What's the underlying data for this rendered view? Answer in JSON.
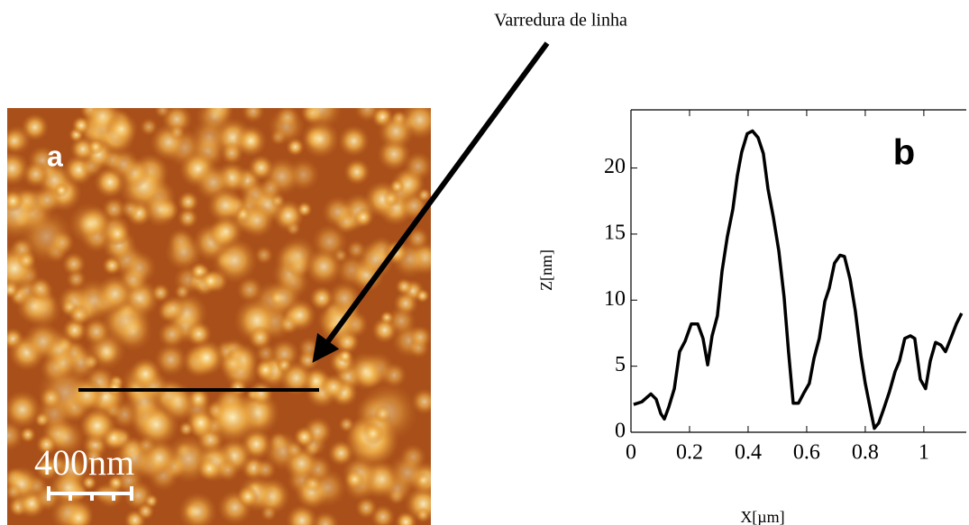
{
  "annotation": "Varredura de linha",
  "image": {
    "label": "a",
    "scale_bar": "400nm"
  },
  "chart_data": {
    "type": "line",
    "panel_label": "b",
    "x_label": "X[µm]",
    "y_label": "Z[nm]",
    "xlim": [
      0,
      1.145
    ],
    "ylim": [
      0,
      24.4
    ],
    "xticks": [
      0,
      0.2,
      0.4,
      0.6,
      0.8,
      1
    ],
    "yticks": [
      0,
      5,
      10,
      15,
      20
    ],
    "x": [
      0.009,
      0.037,
      0.068,
      0.086,
      0.102,
      0.114,
      0.129,
      0.148,
      0.166,
      0.185,
      0.206,
      0.228,
      0.246,
      0.262,
      0.277,
      0.295,
      0.311,
      0.329,
      0.348,
      0.363,
      0.378,
      0.397,
      0.415,
      0.434,
      0.452,
      0.468,
      0.486,
      0.505,
      0.523,
      0.538,
      0.554,
      0.572,
      0.591,
      0.609,
      0.625,
      0.643,
      0.662,
      0.677,
      0.695,
      0.714,
      0.729,
      0.748,
      0.766,
      0.785,
      0.8,
      0.818,
      0.831,
      0.846,
      0.862,
      0.883,
      0.902,
      0.917,
      0.935,
      0.954,
      0.969,
      0.988,
      1.006,
      1.022,
      1.04,
      1.058,
      1.074,
      1.092,
      1.111,
      1.129
    ],
    "series": [
      {
        "color": "#000000",
        "values": [
          2.1,
          2.3,
          2.9,
          2.5,
          1.4,
          1.0,
          1.9,
          3.3,
          6.1,
          6.9,
          8.2,
          8.2,
          7.1,
          5.1,
          7.3,
          8.8,
          12.2,
          14.8,
          16.9,
          19.4,
          21.2,
          22.6,
          22.8,
          22.3,
          21.1,
          18.4,
          16.3,
          13.7,
          10.2,
          6.1,
          2.2,
          2.2,
          3.0,
          3.7,
          5.6,
          7.1,
          9.9,
          10.9,
          12.8,
          13.4,
          13.3,
          11.6,
          9.2,
          5.8,
          3.7,
          1.7,
          0.3,
          0.7,
          1.7,
          3.1,
          4.6,
          5.4,
          7.1,
          7.3,
          7.1,
          4.0,
          3.3,
          5.4,
          6.8,
          6.6,
          6.1,
          7.1,
          8.2,
          9.0
        ]
      }
    ]
  }
}
